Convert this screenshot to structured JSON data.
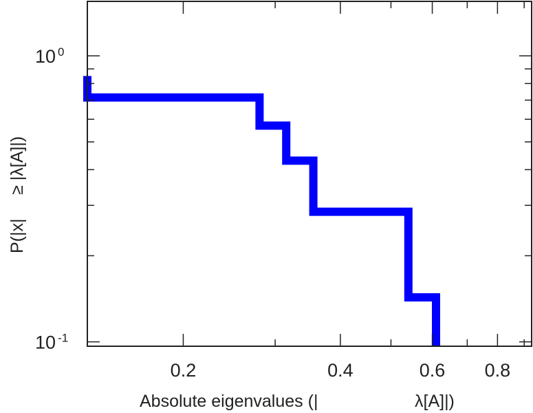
{
  "chart_data": {
    "type": "line",
    "subtype": "step-ccdf",
    "title": "",
    "xlabel": "Absolute eigenvalues (|",
    "xlabel_symbol": "λ[A]|)",
    "ylabel": "P(|x|",
    "ylabel_symbol": "≥ |λ[A]|)",
    "x_scale": "log",
    "y_scale": "log",
    "xlim": [
      0.131,
      0.93
    ],
    "ylim": [
      0.0965,
      1.55
    ],
    "x_ticks": [
      {
        "value": 0.2,
        "label": "0.2"
      },
      {
        "value": 0.4,
        "label": "0.4"
      },
      {
        "value": 0.6,
        "label": "0.6"
      },
      {
        "value": 0.8,
        "label": "0.8"
      }
    ],
    "x_minor_ticks": [
      0.3,
      0.5,
      0.7,
      0.9
    ],
    "y_major_ticks": [
      {
        "value": 1.0,
        "base": "10",
        "exp": "0"
      },
      {
        "value": 0.1,
        "base": "10",
        "exp": "-1"
      }
    ],
    "y_minor_ticks": [
      0.2,
      0.3,
      0.4,
      0.5,
      0.6,
      0.7,
      0.8,
      0.9
    ],
    "grid": false,
    "legend": "none",
    "series": [
      {
        "color": "#0000ff",
        "x": [
          0.131,
          0.131,
          0.28,
          0.28,
          0.315,
          0.315,
          0.355,
          0.355,
          0.54,
          0.54,
          0.61,
          0.61
        ],
        "y": [
          0.85,
          0.715,
          0.715,
          0.57,
          0.57,
          0.43,
          0.43,
          0.285,
          0.285,
          0.143,
          0.143,
          0.0965
        ]
      }
    ]
  }
}
